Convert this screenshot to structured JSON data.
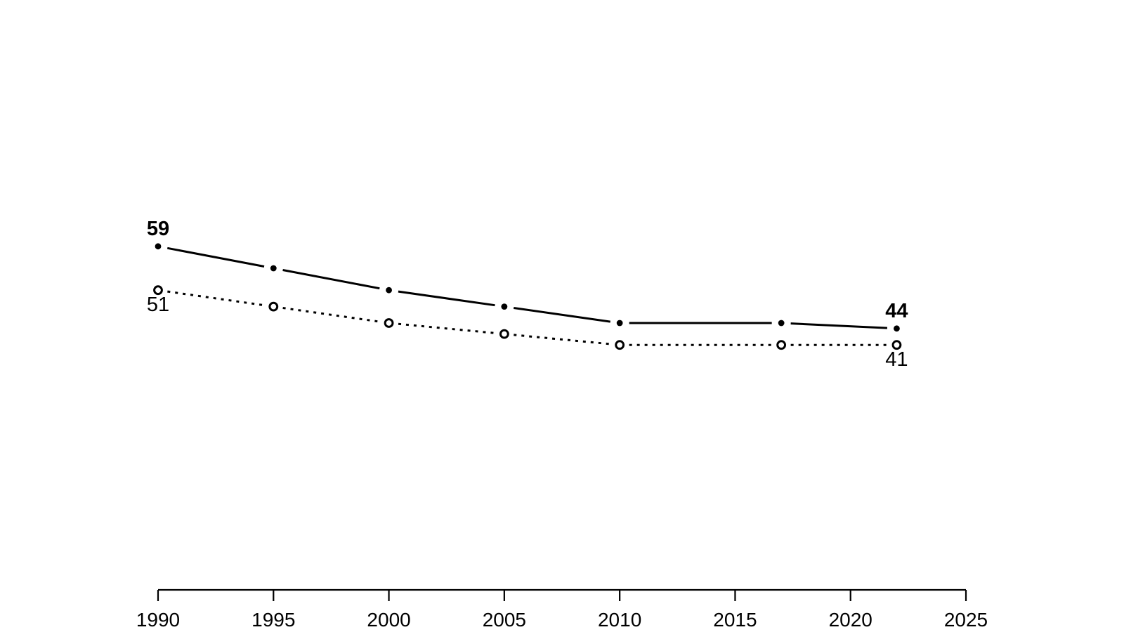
{
  "page": {
    "background": "#ffffff",
    "foreground": "#000000"
  },
  "chart_data": {
    "type": "line",
    "x": [
      1990,
      1995,
      2000,
      2005,
      2010,
      2017,
      2022
    ],
    "series": [
      {
        "name": "upper-solid",
        "values": [
          59,
          55,
          51,
          48,
          45,
          45,
          44
        ],
        "line_style": "solid",
        "marker": "filled-circle",
        "start_label": "59",
        "end_label": "44",
        "label_weight": "bold",
        "label_position": "above",
        "color": "#000000"
      },
      {
        "name": "lower-dotted",
        "values": [
          51,
          48,
          45,
          43,
          41,
          41,
          41
        ],
        "line_style": "dotted",
        "marker": "open-circle",
        "start_label": "51",
        "end_label": "41",
        "label_weight": "normal",
        "label_position": "below",
        "color": "#000000"
      }
    ],
    "title": "",
    "xlabel": "",
    "ylabel": "",
    "x_axis": {
      "ticks": [
        1990,
        1995,
        2000,
        2005,
        2010,
        2015,
        2020,
        2025
      ],
      "tick_labels": [
        "1990",
        "1995",
        "2000",
        "2005",
        "2010",
        "2015",
        "2020",
        "2025"
      ],
      "range": [
        1990,
        2025
      ],
      "visible": true
    },
    "y_axis": {
      "visible": false,
      "approx_range": [
        0,
        100
      ]
    },
    "grid": false,
    "legend": "none"
  }
}
